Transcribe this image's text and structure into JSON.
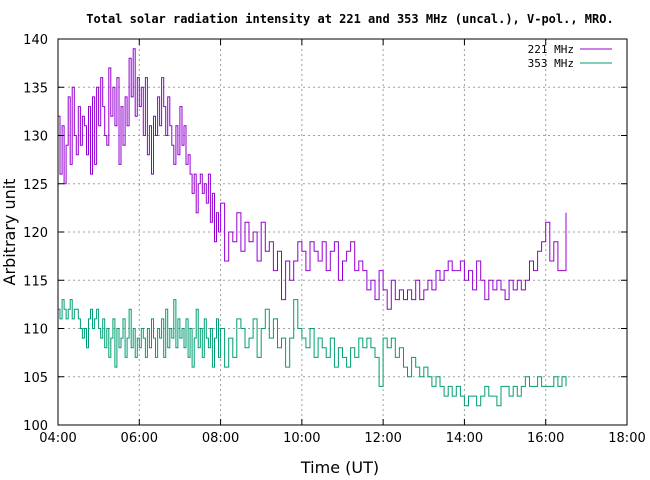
{
  "chart_data": {
    "type": "line",
    "title": "Total solar radiation intensity at 221 and 353 MHz (uncal.), V-pol., MRO.",
    "xlabel": "Time (UT)",
    "ylabel": "Arbitrary unit",
    "x_unit": "hours UT",
    "xlim": [
      4,
      18
    ],
    "ylim": [
      100,
      140
    ],
    "x_ticks": [
      {
        "value": 4,
        "label": "04:00"
      },
      {
        "value": 6,
        "label": "06:00"
      },
      {
        "value": 8,
        "label": "08:00"
      },
      {
        "value": 10,
        "label": "10:00"
      },
      {
        "value": 12,
        "label": "12:00"
      },
      {
        "value": 14,
        "label": "14:00"
      },
      {
        "value": 16,
        "label": "16:00"
      },
      {
        "value": 18,
        "label": "18:00"
      }
    ],
    "y_ticks": [
      {
        "value": 100,
        "label": "100"
      },
      {
        "value": 105,
        "label": "105"
      },
      {
        "value": 110,
        "label": "110"
      },
      {
        "value": 115,
        "label": "115"
      },
      {
        "value": 120,
        "label": "120"
      },
      {
        "value": 125,
        "label": "125"
      },
      {
        "value": 130,
        "label": "130"
      },
      {
        "value": 135,
        "label": "135"
      },
      {
        "value": 140,
        "label": "140"
      }
    ],
    "grid": true,
    "legend_position": "top-right",
    "series": [
      {
        "name": "221 MHz",
        "color": "#9400d3",
        "x": [
          4.0,
          4.05,
          4.1,
          4.15,
          4.2,
          4.25,
          4.3,
          4.35,
          4.4,
          4.45,
          4.5,
          4.55,
          4.6,
          4.65,
          4.7,
          4.75,
          4.8,
          4.85,
          4.9,
          4.95,
          5.0,
          5.05,
          5.1,
          5.15,
          5.2,
          5.25,
          5.3,
          5.35,
          5.4,
          5.45,
          5.5,
          5.55,
          5.6,
          5.65,
          5.7,
          5.75,
          5.8,
          5.85,
          5.9,
          5.95,
          6.0,
          6.05,
          6.1,
          6.15,
          6.2,
          6.25,
          6.3,
          6.35,
          6.4,
          6.45,
          6.5,
          6.55,
          6.6,
          6.65,
          6.7,
          6.75,
          6.8,
          6.85,
          6.9,
          6.95,
          7.0,
          7.05,
          7.1,
          7.15,
          7.2,
          7.25,
          7.3,
          7.35,
          7.4,
          7.45,
          7.5,
          7.55,
          7.6,
          7.65,
          7.7,
          7.75,
          7.8,
          7.85,
          7.9,
          7.95,
          8.0,
          8.1,
          8.2,
          8.3,
          8.4,
          8.5,
          8.6,
          8.7,
          8.8,
          8.9,
          9.0,
          9.1,
          9.2,
          9.3,
          9.4,
          9.5,
          9.6,
          9.7,
          9.8,
          9.9,
          10.0,
          10.1,
          10.2,
          10.3,
          10.4,
          10.5,
          10.6,
          10.7,
          10.8,
          10.9,
          11.0,
          11.1,
          11.2,
          11.3,
          11.4,
          11.5,
          11.6,
          11.7,
          11.8,
          11.9,
          12.0,
          12.1,
          12.2,
          12.3,
          12.4,
          12.5,
          12.6,
          12.7,
          12.8,
          12.9,
          13.0,
          13.1,
          13.2,
          13.3,
          13.4,
          13.5,
          13.6,
          13.7,
          13.8,
          13.9,
          14.0,
          14.1,
          14.2,
          14.3,
          14.4,
          14.5,
          14.6,
          14.7,
          14.8,
          14.9,
          15.0,
          15.1,
          15.2,
          15.3,
          15.4,
          15.5,
          15.6,
          15.7,
          15.8,
          15.9,
          16.0,
          16.1,
          16.2,
          16.3,
          16.4,
          16.5
        ],
        "values": [
          132,
          126,
          131,
          125,
          129,
          134,
          127,
          135,
          130,
          128,
          133,
          129,
          132,
          131,
          128,
          133,
          126,
          134,
          127,
          135,
          131,
          136,
          133,
          130,
          129,
          137,
          132,
          135,
          131,
          136,
          127,
          133,
          129,
          134,
          131,
          138,
          134,
          139,
          132,
          136,
          133,
          135,
          130,
          136,
          128,
          131,
          126,
          132,
          130,
          134,
          131,
          136,
          133,
          130,
          134,
          131,
          129,
          127,
          131,
          128,
          133,
          129,
          131,
          127,
          128,
          126,
          124,
          126,
          122,
          125,
          126,
          124,
          125,
          123,
          126,
          121,
          124,
          119,
          122,
          120,
          123,
          117,
          120,
          119,
          122,
          118,
          121,
          119,
          120,
          117,
          121,
          118,
          119,
          116,
          118,
          113,
          117,
          115,
          117,
          119,
          118,
          116,
          119,
          118,
          117,
          119,
          116,
          118,
          119,
          115,
          117,
          118,
          119,
          116,
          117,
          116,
          114,
          115,
          113,
          116,
          114,
          112,
          115,
          113,
          114,
          113,
          114,
          113,
          115,
          113,
          114,
          115,
          114,
          116,
          115,
          116,
          117,
          116,
          116,
          117,
          115,
          116,
          114,
          117,
          115,
          113,
          115,
          114,
          115,
          114,
          113,
          115,
          114,
          115,
          114,
          115,
          117,
          116,
          118,
          119,
          121,
          117,
          119,
          116,
          116,
          122
        ]
      },
      {
        "name": "353 MHz",
        "color": "#009e73",
        "x": [
          4.0,
          4.05,
          4.1,
          4.15,
          4.2,
          4.25,
          4.3,
          4.35,
          4.4,
          4.45,
          4.5,
          4.55,
          4.6,
          4.65,
          4.7,
          4.75,
          4.8,
          4.85,
          4.9,
          4.95,
          5.0,
          5.05,
          5.1,
          5.15,
          5.2,
          5.25,
          5.3,
          5.35,
          5.4,
          5.45,
          5.5,
          5.55,
          5.6,
          5.65,
          5.7,
          5.75,
          5.8,
          5.85,
          5.9,
          5.95,
          6.0,
          6.05,
          6.1,
          6.15,
          6.2,
          6.25,
          6.3,
          6.35,
          6.4,
          6.45,
          6.5,
          6.55,
          6.6,
          6.65,
          6.7,
          6.75,
          6.8,
          6.85,
          6.9,
          6.95,
          7.0,
          7.05,
          7.1,
          7.15,
          7.2,
          7.25,
          7.3,
          7.35,
          7.4,
          7.45,
          7.5,
          7.55,
          7.6,
          7.65,
          7.7,
          7.75,
          7.8,
          7.85,
          7.9,
          7.95,
          8.0,
          8.1,
          8.2,
          8.3,
          8.4,
          8.5,
          8.6,
          8.7,
          8.8,
          8.9,
          9.0,
          9.1,
          9.2,
          9.3,
          9.4,
          9.5,
          9.6,
          9.7,
          9.8,
          9.9,
          10.0,
          10.1,
          10.2,
          10.3,
          10.4,
          10.5,
          10.6,
          10.7,
          10.8,
          10.9,
          11.0,
          11.1,
          11.2,
          11.3,
          11.4,
          11.5,
          11.6,
          11.7,
          11.8,
          11.9,
          12.0,
          12.1,
          12.2,
          12.3,
          12.4,
          12.5,
          12.6,
          12.7,
          12.8,
          12.9,
          13.0,
          13.1,
          13.2,
          13.3,
          13.4,
          13.5,
          13.6,
          13.7,
          13.8,
          13.9,
          14.0,
          14.1,
          14.2,
          14.3,
          14.4,
          14.5,
          14.6,
          14.7,
          14.8,
          14.9,
          15.0,
          15.1,
          15.2,
          15.3,
          15.4,
          15.5,
          15.6,
          15.7,
          15.8,
          15.9,
          16.0,
          16.1,
          16.2,
          16.3,
          16.4,
          16.5
        ],
        "values": [
          112,
          111,
          113,
          112,
          111,
          112,
          113,
          111,
          112,
          112,
          111,
          110,
          109,
          110,
          108,
          111,
          112,
          110,
          111,
          112,
          110,
          109,
          111,
          108,
          110,
          107,
          109,
          111,
          106,
          110,
          108,
          109,
          111,
          107,
          109,
          112,
          108,
          110,
          107,
          109,
          108,
          110,
          109,
          107,
          110,
          108,
          111,
          109,
          107,
          110,
          109,
          111,
          107,
          112,
          108,
          110,
          109,
          113,
          108,
          111,
          109,
          110,
          108,
          111,
          107,
          110,
          106,
          109,
          112,
          108,
          110,
          107,
          111,
          109,
          108,
          110,
          106,
          109,
          111,
          107,
          110,
          106,
          109,
          107,
          111,
          110,
          108,
          109,
          111,
          107,
          110,
          112,
          109,
          111,
          108,
          109,
          106,
          109,
          113,
          110,
          109,
          108,
          110,
          107,
          109,
          108,
          107,
          109,
          106,
          108,
          107,
          106,
          108,
          107,
          109,
          108,
          109,
          108,
          107,
          104,
          109,
          108,
          109,
          107,
          108,
          106,
          105,
          107,
          106,
          105,
          106,
          105,
          104,
          105,
          104,
          103,
          104,
          103,
          104,
          103,
          102,
          103,
          103,
          102,
          103,
          104,
          103,
          103,
          102,
          104,
          104,
          103,
          104,
          103,
          104,
          105,
          104,
          104,
          105,
          104,
          104,
          104,
          105,
          104,
          105,
          104
        ]
      }
    ]
  }
}
